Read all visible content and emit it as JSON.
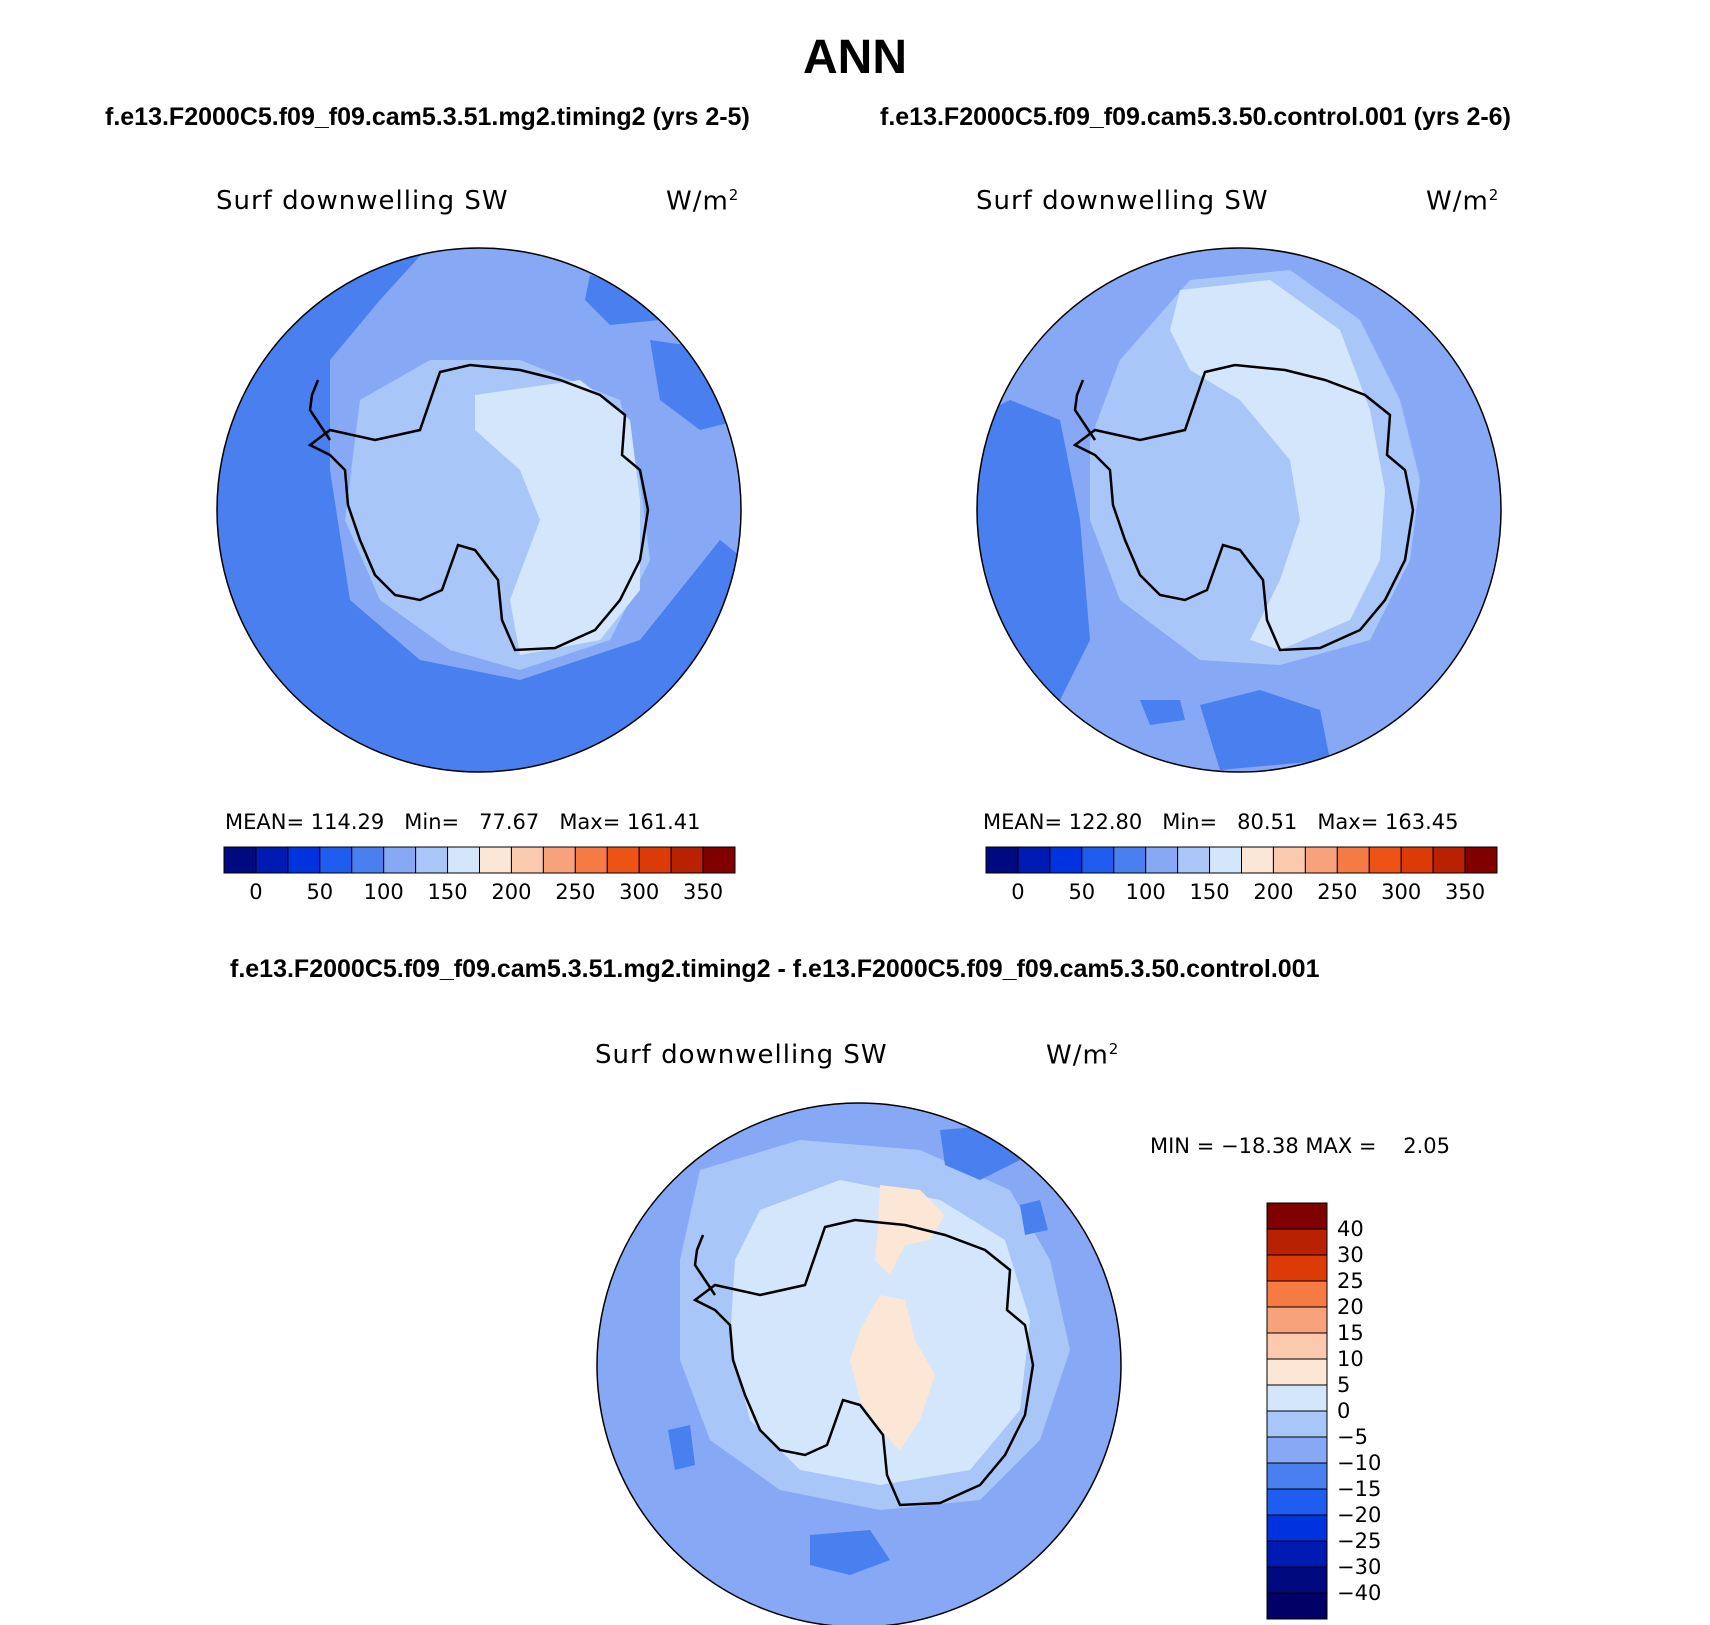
{
  "header": {
    "title": "ANN",
    "case_a_label": "f.e13.F2000C5.f09_f09.cam5.3.51.mg2.timing2 (yrs 2-5)",
    "case_b_label": "f.e13.F2000C5.f09_f09.cam5.3.50.control.001 (yrs 2-6)",
    "diff_label": "f.e13.F2000C5.f09_f09.cam5.3.51.mg2.timing2 - f.e13.F2000C5.f09_f09.cam5.3.50.control.001"
  },
  "colors": {
    "land_coast": "#000000",
    "ocean_mid": "#4a7fef",
    "ocean_light": "#87a8f5",
    "ice_light": "#d4e6fb",
    "ice_mid": "#a9c6f8",
    "warm_pale": "#fce6d6"
  },
  "chart_data": [
    {
      "type": "contour_map",
      "name": "case-a",
      "variable": "Surf downwelling SW",
      "units_base": "W/m",
      "units_exp": "2",
      "stats": {
        "mean_label": "MEAN=",
        "mean": "114.29",
        "min_label": "Min=",
        "min": "77.67",
        "max_label": "Max=",
        "max": "161.41"
      },
      "colorbar": {
        "colors": [
          "#000a80",
          "#001bb3",
          "#0033e0",
          "#1f5cf0",
          "#4a7fef",
          "#87a8f5",
          "#a9c6f8",
          "#d4e6fb",
          "#fce6d6",
          "#fbc9ae",
          "#f8a27c",
          "#f57a44",
          "#ee5316",
          "#dc3a06",
          "#b82202",
          "#800000"
        ],
        "ticks": [
          "0",
          "50",
          "100",
          "150",
          "200",
          "250",
          "300",
          "350"
        ]
      }
    },
    {
      "type": "contour_map",
      "name": "case-b",
      "variable": "Surf downwelling SW",
      "units_base": "W/m",
      "units_exp": "2",
      "stats": {
        "mean_label": "MEAN=",
        "mean": "122.80",
        "min_label": "Min=",
        "min": "80.51",
        "max_label": "Max=",
        "max": "163.45"
      },
      "colorbar": {
        "colors": [
          "#000a80",
          "#001bb3",
          "#0033e0",
          "#1f5cf0",
          "#4a7fef",
          "#87a8f5",
          "#a9c6f8",
          "#d4e6fb",
          "#fce6d6",
          "#fbc9ae",
          "#f8a27c",
          "#f57a44",
          "#ee5316",
          "#dc3a06",
          "#b82202",
          "#800000"
        ],
        "ticks": [
          "0",
          "50",
          "100",
          "150",
          "200",
          "250",
          "300",
          "350"
        ]
      }
    },
    {
      "type": "contour_map",
      "name": "difference",
      "variable": "Surf downwelling SW",
      "units_base": "W/m",
      "units_exp": "2",
      "stats": {
        "min_label": "MIN =",
        "min": "−18.38",
        "max_label": "MAX =",
        "max": "2.05"
      },
      "colorbar": {
        "colors_top_to_bottom": [
          "#800000",
          "#b82202",
          "#dc3a06",
          "#f57a44",
          "#f8a27c",
          "#fbc9ae",
          "#fce6d6",
          "#d4e6fb",
          "#a9c6f8",
          "#87a8f5",
          "#4a7fef",
          "#1f5cf0",
          "#0033e0",
          "#001bb3",
          "#000a80",
          "#000066"
        ],
        "ticks_top_to_bottom": [
          "40",
          "30",
          "25",
          "20",
          "15",
          "10",
          "5",
          "0",
          "−5",
          "−10",
          "−15",
          "−20",
          "−25",
          "−30",
          "−40"
        ]
      }
    }
  ]
}
